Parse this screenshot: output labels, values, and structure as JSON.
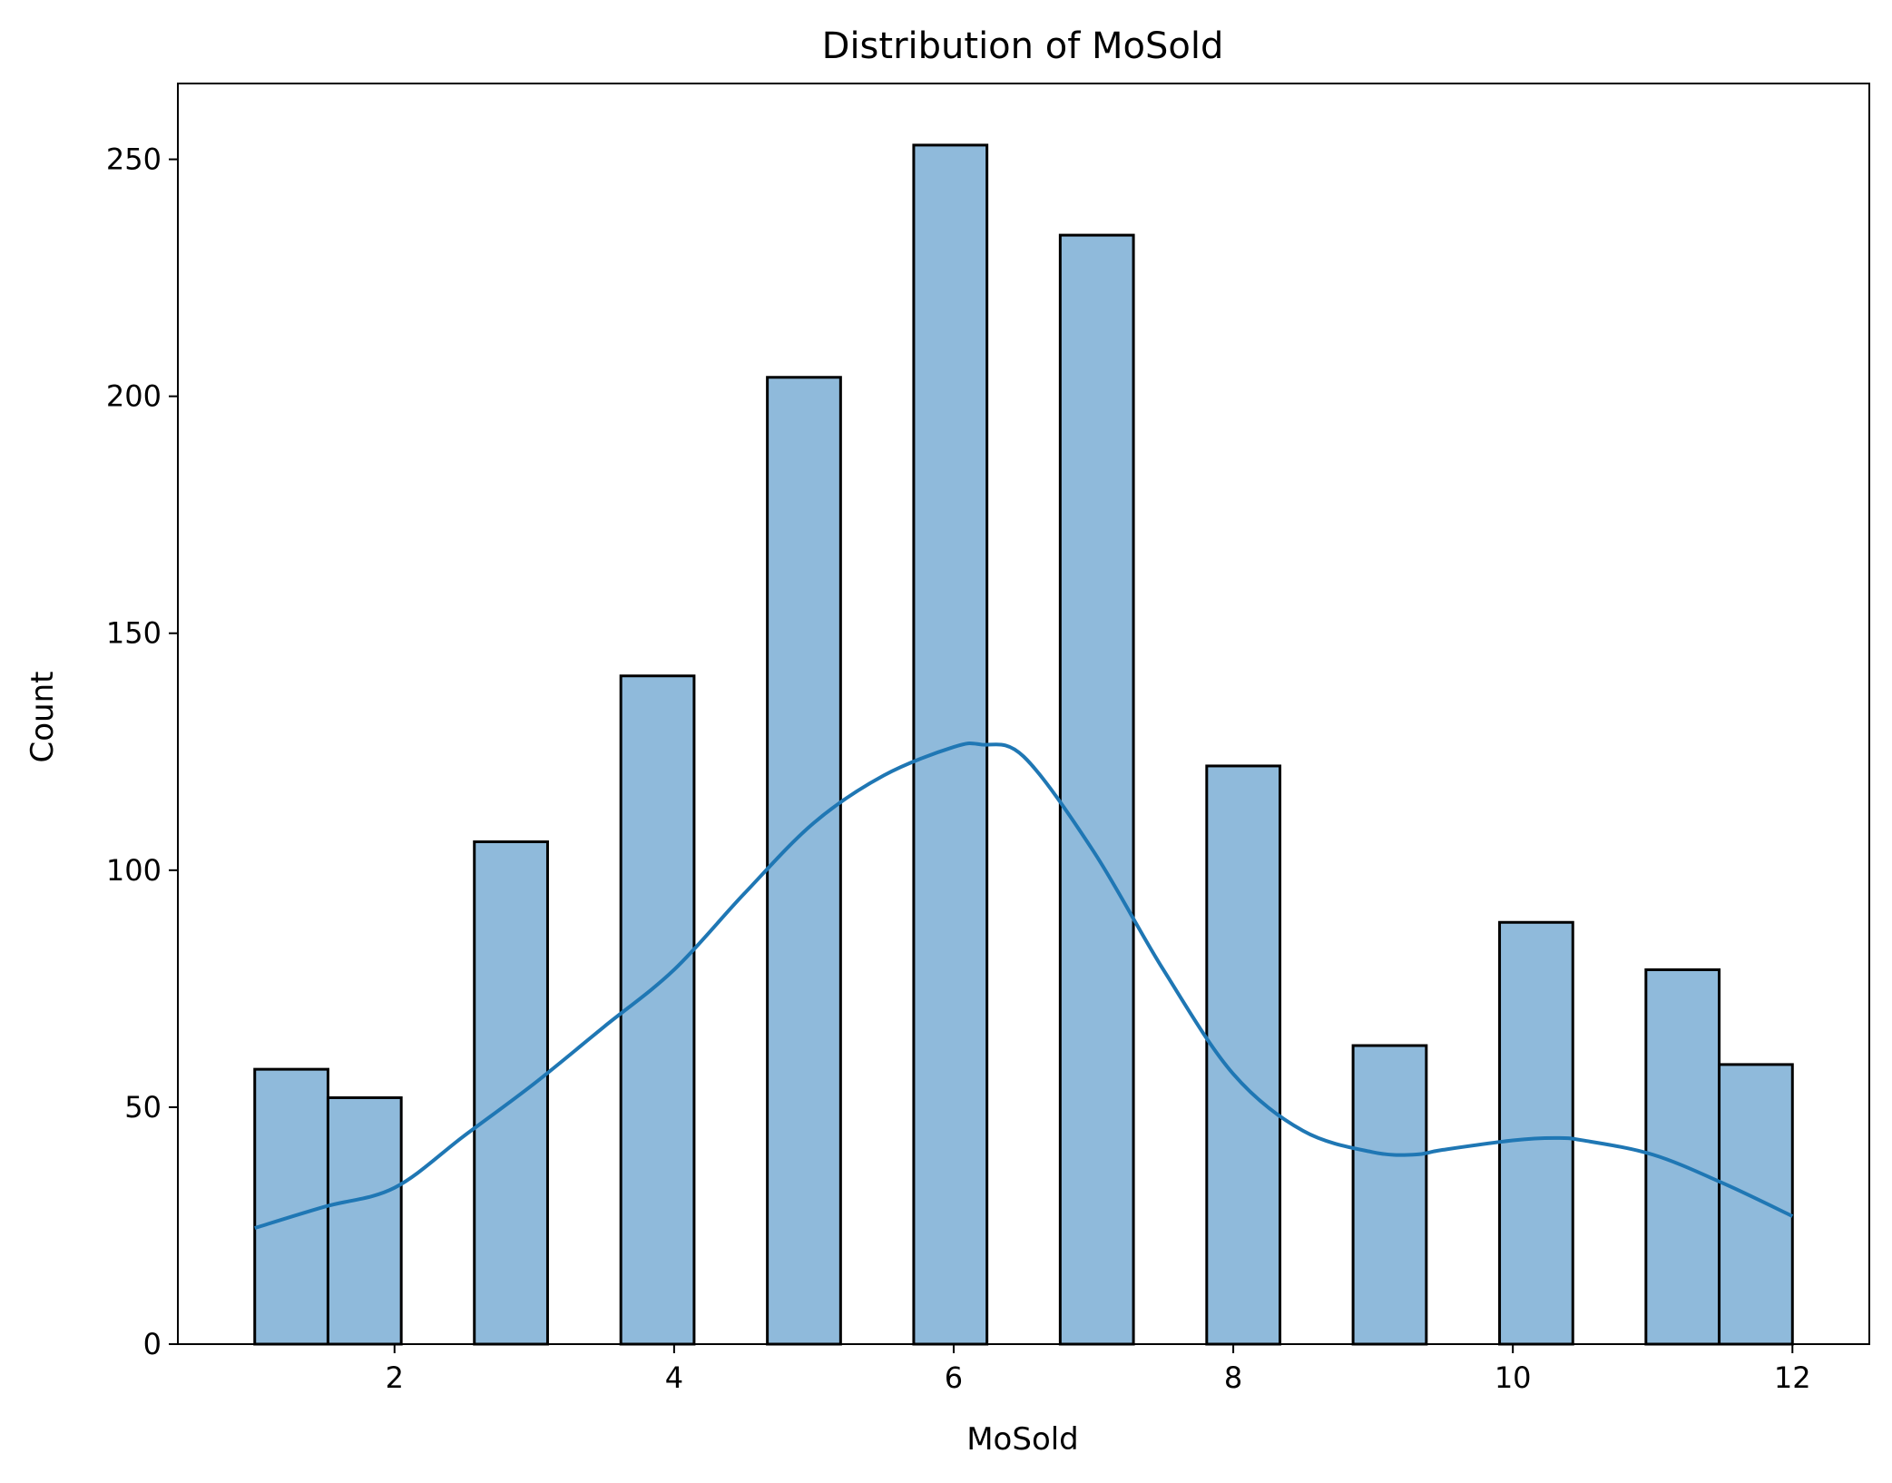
{
  "chart_data": {
    "type": "bar",
    "title": "Distribution of MoSold",
    "xlabel": "MoSold",
    "ylabel": "Count",
    "xlim": [
      0.45,
      12.55
    ],
    "ylim": [
      0,
      266
    ],
    "xticks": [
      2,
      4,
      6,
      8,
      10,
      12
    ],
    "yticks": [
      0,
      50,
      100,
      150,
      200,
      250
    ],
    "bin_width": 0.524,
    "bins": [
      {
        "x0": 1.0,
        "count": 58
      },
      {
        "x0": 1.524,
        "count": 52
      },
      {
        "x0": 2.048,
        "count": 0
      },
      {
        "x0": 2.571,
        "count": 106
      },
      {
        "x0": 3.095,
        "count": 0
      },
      {
        "x0": 3.619,
        "count": 141
      },
      {
        "x0": 4.143,
        "count": 0
      },
      {
        "x0": 4.667,
        "count": 204
      },
      {
        "x0": 5.19,
        "count": 0
      },
      {
        "x0": 5.714,
        "count": 253
      },
      {
        "x0": 6.238,
        "count": 0
      },
      {
        "x0": 6.762,
        "count": 234
      },
      {
        "x0": 7.286,
        "count": 0
      },
      {
        "x0": 7.81,
        "count": 122
      },
      {
        "x0": 8.333,
        "count": 0
      },
      {
        "x0": 8.857,
        "count": 63
      },
      {
        "x0": 9.381,
        "count": 0
      },
      {
        "x0": 9.905,
        "count": 89
      },
      {
        "x0": 10.429,
        "count": 0
      },
      {
        "x0": 10.952,
        "count": 79
      },
      {
        "x0": 11.476,
        "count": 59
      }
    ],
    "kde": {
      "x": [
        1.0,
        1.5,
        2.0,
        2.5,
        3.0,
        3.5,
        4.0,
        4.5,
        5.0,
        5.5,
        6.0,
        6.2,
        6.5,
        7.0,
        7.5,
        8.0,
        8.5,
        9.0,
        9.3,
        9.5,
        10.0,
        10.3,
        10.5,
        11.0,
        11.5,
        12.0
      ],
      "y": [
        24.5,
        29,
        33,
        44,
        55,
        67,
        79,
        95,
        110,
        120,
        126,
        126.5,
        124,
        104,
        79,
        57,
        45,
        40.5,
        40,
        41,
        43,
        43.5,
        43,
        40,
        34,
        27
      ]
    },
    "bar_color": "#8fbadb",
    "bar_edge_color": "#000000",
    "line_color": "#1f77b4",
    "grid": false,
    "legend": "none"
  }
}
